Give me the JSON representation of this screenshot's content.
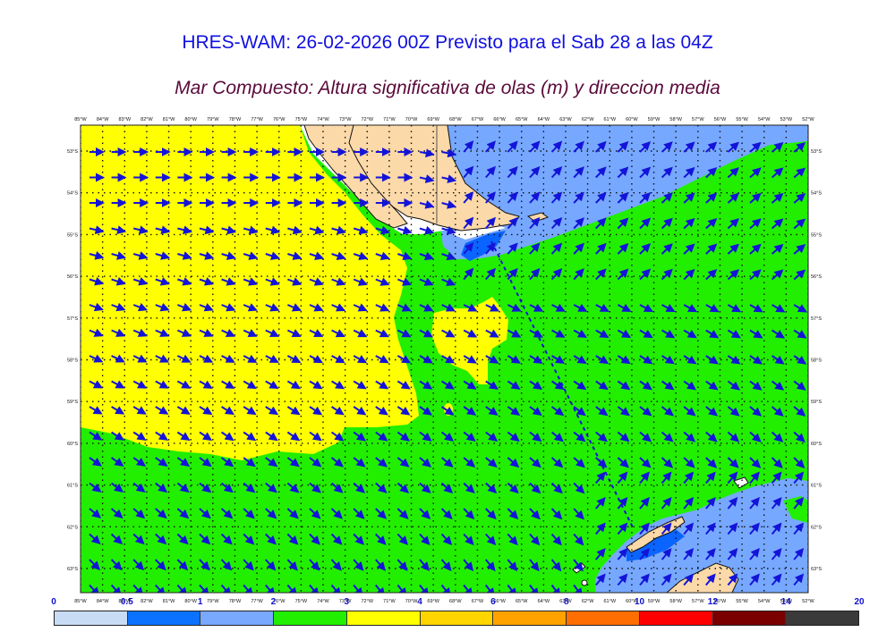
{
  "title": "HRES-WAM: 26-02-2026 00Z Previsto para el Sab 28 a las 04Z",
  "subtitle": "Mar Compuesto: Altura significativa de olas (m) y direccion media",
  "map": {
    "lon_labels": [
      "85°W",
      "84°W",
      "83°W",
      "82°W",
      "81°W",
      "80°W",
      "79°W",
      "78°W",
      "77°W",
      "76°W",
      "75°W",
      "74°W",
      "73°W",
      "72°W",
      "71°W",
      "70°W",
      "69°W",
      "68°W",
      "67°W",
      "66°W",
      "65°W",
      "64°W",
      "63°W",
      "62°W",
      "61°W",
      "60°W",
      "59°W",
      "58°W",
      "57°W",
      "56°W",
      "55°W",
      "54°W",
      "53°W",
      "52°W"
    ],
    "lat_labels": [
      "53°S",
      "54°S",
      "55°S",
      "56°S",
      "57°S",
      "58°S",
      "59°S",
      "60°S",
      "61°S",
      "62°S",
      "63°S"
    ],
    "colors": {
      "yellow_zone": "#ffff00",
      "green_zone": "#22ee00",
      "blue_zone": "#77a8ff",
      "dark_blue_zone": "#0a64ff",
      "land": "#fcd9a8",
      "arrow": "#1414d8"
    },
    "arrow_icon": "wave-direction-arrow"
  },
  "legend": {
    "ticks": [
      "0",
      "0.5",
      "1",
      "2",
      "3",
      "4",
      "6",
      "8",
      "10",
      "12",
      "14",
      "20"
    ],
    "colors": [
      "#c8dcf6",
      "#0a72ff",
      "#79a8ff",
      "#22ee00",
      "#ffff00",
      "#ffd500",
      "#ffa200",
      "#ff6e00",
      "#ff0000",
      "#7a0000",
      "#3a3a3a"
    ]
  }
}
